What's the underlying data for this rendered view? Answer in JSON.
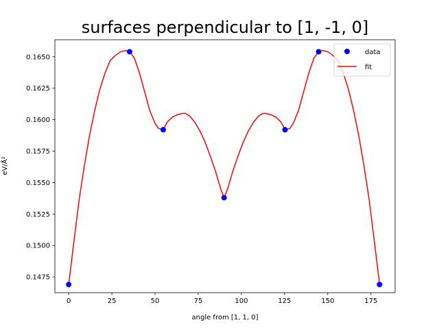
{
  "chart_data": {
    "type": "line",
    "title": "surfaces perpendicular to [1, -1, 0]",
    "xlabel": "angle from [1, 1, 0]",
    "ylabel": "eV/Å²",
    "xlim": [
      -8,
      189
    ],
    "ylim": [
      0.14625,
      0.16635
    ],
    "xticks": [
      0,
      25,
      50,
      75,
      100,
      125,
      150,
      175
    ],
    "yticks": [
      0.1475,
      0.15,
      0.1525,
      0.155,
      0.1575,
      0.16,
      0.1625,
      0.165
    ],
    "ytick_labels": [
      "0.1475",
      "0.1500",
      "0.1525",
      "0.1550",
      "0.1575",
      "0.1600",
      "0.1625",
      "0.1650"
    ],
    "grid": false,
    "legend_position": "top-right",
    "series": [
      {
        "name": "data",
        "kind": "scatter",
        "color": "#0000ff",
        "x": [
          0,
          35.26,
          54.74,
          90,
          125.26,
          144.74,
          180
        ],
        "y": [
          0.1469,
          0.1654,
          0.1592,
          0.1538,
          0.1592,
          0.1654,
          0.1469
        ]
      },
      {
        "name": "fit",
        "kind": "line",
        "color": "#ff0000",
        "x": [
          0,
          3,
          6,
          9,
          12,
          15,
          18,
          21,
          24,
          27,
          30,
          33,
          35.26,
          38,
          41,
          44,
          47,
          50,
          52,
          54.74,
          57,
          60,
          63,
          66,
          67.5,
          70,
          73,
          76,
          79,
          82,
          85,
          88,
          90,
          92,
          95,
          98,
          101,
          104,
          107,
          110,
          112.5,
          114,
          117,
          120,
          123,
          125.26,
          128,
          130,
          133,
          136,
          139,
          142,
          144.74,
          147,
          150,
          153,
          156,
          159,
          162,
          165,
          168,
          171,
          174,
          177,
          180
        ],
        "y": [
          0.1469,
          0.1503,
          0.1536,
          0.1563,
          0.1587,
          0.1607,
          0.1624,
          0.1637,
          0.1647,
          0.1651,
          0.1654,
          0.1655,
          0.1654,
          0.1649,
          0.1637,
          0.1622,
          0.1607,
          0.1597,
          0.1593,
          0.1592,
          0.1598,
          0.1602,
          0.1604,
          0.1605,
          0.1605,
          0.1603,
          0.1598,
          0.1591,
          0.1582,
          0.1571,
          0.1559,
          0.1545,
          0.1538,
          0.1545,
          0.1559,
          0.1571,
          0.1582,
          0.1591,
          0.1598,
          0.1603,
          0.1605,
          0.1605,
          0.1604,
          0.1602,
          0.1598,
          0.1592,
          0.1593,
          0.1597,
          0.1607,
          0.1622,
          0.1637,
          0.1649,
          0.1654,
          0.1655,
          0.1654,
          0.1651,
          0.1647,
          0.1637,
          0.1624,
          0.1607,
          0.1587,
          0.1563,
          0.1536,
          0.1503,
          0.1469
        ]
      }
    ]
  }
}
